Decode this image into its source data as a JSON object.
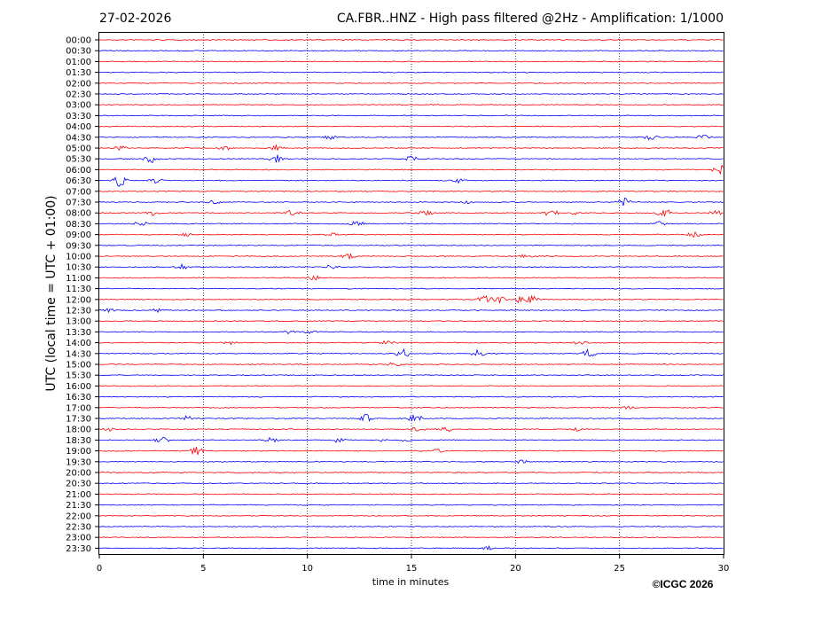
{
  "header": {
    "date": "27-02-2026",
    "title": "CA.FBR..HNZ - High pass filtered @2Hz - Amplification: 1/1000"
  },
  "credit": "©ICGC 2026",
  "colors": {
    "trace_a": "#ff0000",
    "trace_b": "#0000ff",
    "gridline": "#000080",
    "frame": "#000000"
  },
  "chart_data": {
    "type": "line",
    "xlabel": "time in minutes",
    "ylabel": "UTC (local time = UTC + 01:00)",
    "xlim": [
      0,
      30
    ],
    "x_ticks": [
      0,
      5,
      10,
      15,
      20,
      25,
      30
    ],
    "x_tick_labels": [
      "0",
      "5",
      "10",
      "15",
      "20",
      "25",
      "30"
    ],
    "vertical_grid_minutes": [
      5,
      10,
      15,
      20,
      25
    ],
    "rows": [
      {
        "label": "00:00",
        "color": "red",
        "events": []
      },
      {
        "label": "00:30",
        "color": "blue",
        "events": []
      },
      {
        "label": "01:00",
        "color": "red",
        "events": []
      },
      {
        "label": "01:30",
        "color": "blue",
        "events": []
      },
      {
        "label": "02:00",
        "color": "red",
        "events": []
      },
      {
        "label": "02:30",
        "color": "blue",
        "events": []
      },
      {
        "label": "03:00",
        "color": "red",
        "events": []
      },
      {
        "label": "03:30",
        "color": "blue",
        "events": []
      },
      {
        "label": "04:00",
        "color": "red",
        "events": []
      },
      {
        "label": "04:30",
        "color": "blue",
        "events": [
          [
            11,
            3
          ],
          [
            26.5,
            3
          ],
          [
            29,
            3
          ]
        ]
      },
      {
        "label": "05:00",
        "color": "red",
        "events": [
          [
            1,
            3
          ],
          [
            6,
            2.5
          ],
          [
            8.5,
            3
          ]
        ]
      },
      {
        "label": "05:30",
        "color": "blue",
        "events": [
          [
            2.5,
            5
          ],
          [
            8.5,
            5
          ],
          [
            15,
            5
          ]
        ]
      },
      {
        "label": "06:00",
        "color": "red",
        "events": [
          [
            29.8,
            6
          ]
        ]
      },
      {
        "label": "06:30",
        "color": "blue",
        "events": [
          [
            1,
            8
          ],
          [
            2.7,
            3
          ],
          [
            17.3,
            3
          ]
        ]
      },
      {
        "label": "07:00",
        "color": "red",
        "events": []
      },
      {
        "label": "07:30",
        "color": "blue",
        "events": [
          [
            5.5,
            2
          ],
          [
            17.7,
            2
          ],
          [
            25.2,
            5
          ]
        ]
      },
      {
        "label": "08:00",
        "color": "red",
        "events": [
          [
            2.6,
            3
          ],
          [
            9.3,
            4
          ],
          [
            15.7,
            3
          ],
          [
            21.7,
            5
          ],
          [
            23,
            3
          ],
          [
            27.1,
            7
          ],
          [
            29.6,
            3
          ]
        ]
      },
      {
        "label": "08:30",
        "color": "blue",
        "events": [
          [
            2,
            3
          ],
          [
            12.4,
            3
          ],
          [
            26.9,
            3
          ]
        ]
      },
      {
        "label": "09:00",
        "color": "red",
        "events": [
          [
            4.1,
            2
          ],
          [
            11.2,
            2
          ],
          [
            28.6,
            3
          ]
        ]
      },
      {
        "label": "09:30",
        "color": "blue",
        "events": []
      },
      {
        "label": "10:00",
        "color": "red",
        "events": [
          [
            12,
            4
          ],
          [
            20.5,
            2
          ]
        ]
      },
      {
        "label": "10:30",
        "color": "blue",
        "events": [
          [
            4,
            3
          ],
          [
            11.2,
            4
          ]
        ]
      },
      {
        "label": "11:00",
        "color": "red",
        "events": [
          [
            10.3,
            3
          ]
        ]
      },
      {
        "label": "11:30",
        "color": "blue",
        "events": []
      },
      {
        "label": "12:00",
        "color": "red",
        "events": [
          [
            18.5,
            5
          ],
          [
            19.2,
            6
          ],
          [
            20.2,
            4
          ],
          [
            20.8,
            4
          ]
        ]
      },
      {
        "label": "12:30",
        "color": "blue",
        "events": [
          [
            0.5,
            2
          ],
          [
            2.8,
            2
          ]
        ]
      },
      {
        "label": "13:00",
        "color": "red",
        "events": []
      },
      {
        "label": "13:30",
        "color": "blue",
        "events": [
          [
            9.1,
            2
          ],
          [
            10.2,
            2
          ]
        ]
      },
      {
        "label": "14:00",
        "color": "red",
        "events": [
          [
            6.2,
            2
          ],
          [
            13.8,
            2
          ],
          [
            23.1,
            2
          ]
        ]
      },
      {
        "label": "14:30",
        "color": "blue",
        "events": [
          [
            14.6,
            6
          ],
          [
            18.2,
            4
          ],
          [
            23.5,
            5
          ]
        ]
      },
      {
        "label": "15:00",
        "color": "red",
        "events": [
          [
            14.2,
            3
          ]
        ]
      },
      {
        "label": "15:30",
        "color": "blue",
        "events": []
      },
      {
        "label": "16:00",
        "color": "red",
        "events": []
      },
      {
        "label": "16:30",
        "color": "blue",
        "events": []
      },
      {
        "label": "17:00",
        "color": "red",
        "events": [
          [
            25.4,
            2
          ]
        ]
      },
      {
        "label": "17:30",
        "color": "blue",
        "events": [
          [
            4.2,
            3
          ],
          [
            12.8,
            5
          ],
          [
            15.2,
            6
          ]
        ]
      },
      {
        "label": "18:00",
        "color": "red",
        "events": [
          [
            0.5,
            2
          ],
          [
            15.3,
            3
          ],
          [
            16.6,
            4
          ],
          [
            22.9,
            2
          ]
        ]
      },
      {
        "label": "18:30",
        "color": "blue",
        "events": [
          [
            3,
            4
          ],
          [
            8.3,
            3
          ],
          [
            11.5,
            3
          ],
          [
            13.5,
            2
          ],
          [
            14.8,
            2
          ]
        ]
      },
      {
        "label": "19:00",
        "color": "red",
        "events": [
          [
            4.7,
            6
          ],
          [
            16.3,
            2
          ]
        ]
      },
      {
        "label": "19:30",
        "color": "blue",
        "events": [
          [
            20.3,
            2
          ]
        ]
      },
      {
        "label": "20:00",
        "color": "red",
        "events": []
      },
      {
        "label": "20:30",
        "color": "blue",
        "events": []
      },
      {
        "label": "21:00",
        "color": "red",
        "events": []
      },
      {
        "label": "21:30",
        "color": "blue",
        "events": []
      },
      {
        "label": "22:00",
        "color": "red",
        "events": []
      },
      {
        "label": "22:30",
        "color": "blue",
        "events": []
      },
      {
        "label": "23:00",
        "color": "red",
        "events": []
      },
      {
        "label": "23:30",
        "color": "blue",
        "events": [
          [
            18.7,
            2
          ]
        ]
      }
    ]
  }
}
